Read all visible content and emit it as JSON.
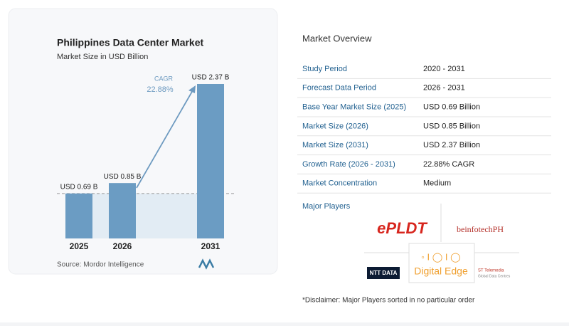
{
  "chart_data": {
    "type": "bar",
    "title": "Philippines Data Center Market",
    "subtitle": "Market Size in USD Billion",
    "categories": [
      "2025",
      "2026",
      "2031"
    ],
    "values": [
      0.69,
      0.85,
      2.37
    ],
    "value_labels": [
      "USD 0.69 B",
      "USD 0.85 B",
      "USD 2.37 B"
    ],
    "color": "#6b9cc3",
    "cagr_label": "CAGR",
    "cagr_value": "22.88%",
    "source": "Source:  Mordor Intelligence"
  },
  "overview": {
    "title": "Market Overview",
    "rows": [
      [
        "Study Period",
        "2020 - 2031"
      ],
      [
        "Forecast Data Period",
        "2026 - 2031"
      ],
      [
        "Base Year Market Size (2025)",
        "USD 0.69 Billion"
      ],
      [
        "Market Size (2026)",
        "USD 0.85 Billion"
      ],
      [
        "Market Size (2031)",
        "USD 2.37 Billion"
      ],
      [
        "Growth Rate (2026 - 2031)",
        "22.88% CAGR"
      ],
      [
        "Market Concentration",
        "Medium"
      ]
    ]
  },
  "players": {
    "title": "Major Players",
    "names": [
      "ePLDT",
      "beinfotechPH",
      "NTT DATA",
      "Digital Edge",
      "ST Telemedia",
      "Global Data Centres"
    ]
  },
  "disclaimer": "*Disclaimer: Major Players sorted in no particular order"
}
